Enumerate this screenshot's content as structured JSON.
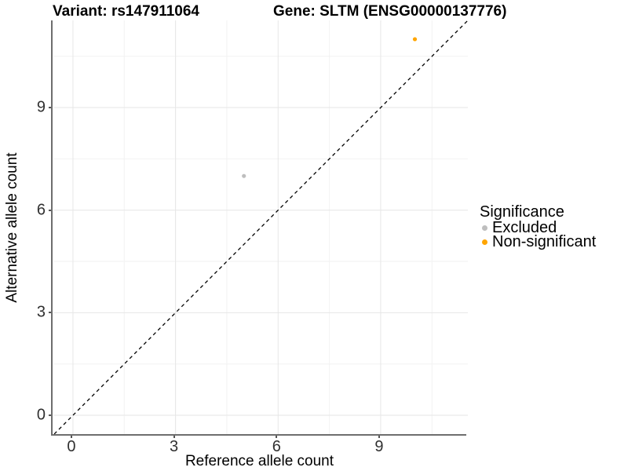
{
  "figure": {
    "variant_title": "Variant: rs147911064",
    "gene_title": "Gene: SLTM (ENSG00000137776)"
  },
  "axes": {
    "x": {
      "label": "Reference allele count",
      "tick_labels": [
        "0",
        "3",
        "6",
        "9"
      ]
    },
    "y": {
      "label": "Alternative allele count",
      "tick_labels": [
        "0",
        "3",
        "6",
        "9"
      ]
    }
  },
  "legend": {
    "title": "Significance",
    "items": [
      {
        "label": "Excluded",
        "color": "#bebebe"
      },
      {
        "label": "Non-significant",
        "color": "#ffa500"
      }
    ]
  },
  "chart_data": {
    "type": "scatter",
    "title": "Variant: rs147911064 — Gene: SLTM (ENSG00000137776)",
    "xlabel": "Reference allele count",
    "ylabel": "Alternative allele count",
    "xlim": [
      -0.55,
      11.55
    ],
    "ylim": [
      -0.55,
      11.55
    ],
    "x_ticks": [
      0,
      3,
      6,
      9
    ],
    "y_ticks": [
      0,
      3,
      6,
      9
    ],
    "x_minor_ticks": [
      1.5,
      4.5,
      7.5,
      10.5
    ],
    "y_minor_ticks": [
      1.5,
      4.5,
      7.5,
      10.5
    ],
    "grid": true,
    "legend_position": "right",
    "identity_line": {
      "style": "dashed",
      "color": "#000000",
      "from": [
        -0.55,
        -0.55
      ],
      "to": [
        11.55,
        11.55
      ]
    },
    "series": [
      {
        "name": "Excluded",
        "color": "#bebebe",
        "points": [
          [
            5,
            7
          ]
        ]
      },
      {
        "name": "Non-significant",
        "color": "#ffa500",
        "points": [
          [
            10,
            11
          ]
        ]
      }
    ],
    "point_radius": 2.6,
    "colors": {
      "grid_major": "#e6e6e6",
      "grid_minor": "#f2f2f2",
      "axis_line": "#6e6e6e",
      "tick_mark": "#555555",
      "tick_text": "#303030"
    }
  }
}
